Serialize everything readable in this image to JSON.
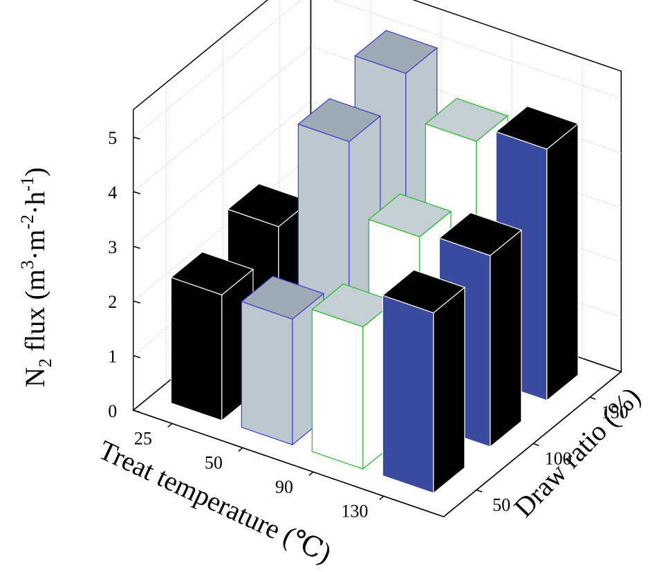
{
  "chart_data": {
    "type": "bar3d",
    "title": "",
    "x_axis": {
      "label": "Treat temperature (℃)",
      "categories": [
        "25",
        "50",
        "90",
        "130"
      ]
    },
    "y_axis": {
      "label": "Draw ratio (%)",
      "categories": [
        "50",
        "100",
        "150"
      ]
    },
    "z_axis": {
      "label_main": "N",
      "label_sub": "2",
      "label_rest": " flux (m",
      "label_sup1": "3",
      "label_mid": "·m",
      "label_sup2": "-2",
      "label_mid2": "·h",
      "label_sup3": "-1",
      "label_end": ")",
      "ticks": [
        "0",
        "1",
        "2",
        "3",
        "4",
        "5"
      ],
      "zlim": [
        0,
        5.5
      ]
    },
    "bars": [
      {
        "temp": "25",
        "draw": "50",
        "value": 2.3
      },
      {
        "temp": "50",
        "draw": "50",
        "value": 2.3
      },
      {
        "temp": "90",
        "draw": "50",
        "value": 2.6
      },
      {
        "temp": "130",
        "draw": "50",
        "value": 3.3
      },
      {
        "temp": "25",
        "draw": "100",
        "value": 2.7
      },
      {
        "temp": "50",
        "draw": "100",
        "value": 4.7
      },
      {
        "temp": "90",
        "draw": "100",
        "value": 3.4
      },
      {
        "temp": "130",
        "draw": "100",
        "value": 3.5
      },
      {
        "temp": "50",
        "draw": "150",
        "value": 5.1
      },
      {
        "temp": "90",
        "draw": "150",
        "value": 4.3
      },
      {
        "temp": "130",
        "draw": "150",
        "value": 4.6
      }
    ],
    "colors": {
      "25": {
        "front": "#000000",
        "side": "#000000",
        "top": "#000000",
        "edge": "#ffffff"
      },
      "50": {
        "front": "#bcc8cd",
        "side": "#bcc8cd",
        "top": "#9eaab4",
        "edge": "#3a3ad0"
      },
      "90": {
        "front": "#ffffff",
        "side": "#ffffff",
        "top": "#c4cfd4",
        "edge": "#22bb22"
      },
      "130": {
        "front": "#3a4a9e",
        "side": "#000000",
        "top": "#000000",
        "edge": "#ffffff"
      }
    },
    "grid": true
  }
}
